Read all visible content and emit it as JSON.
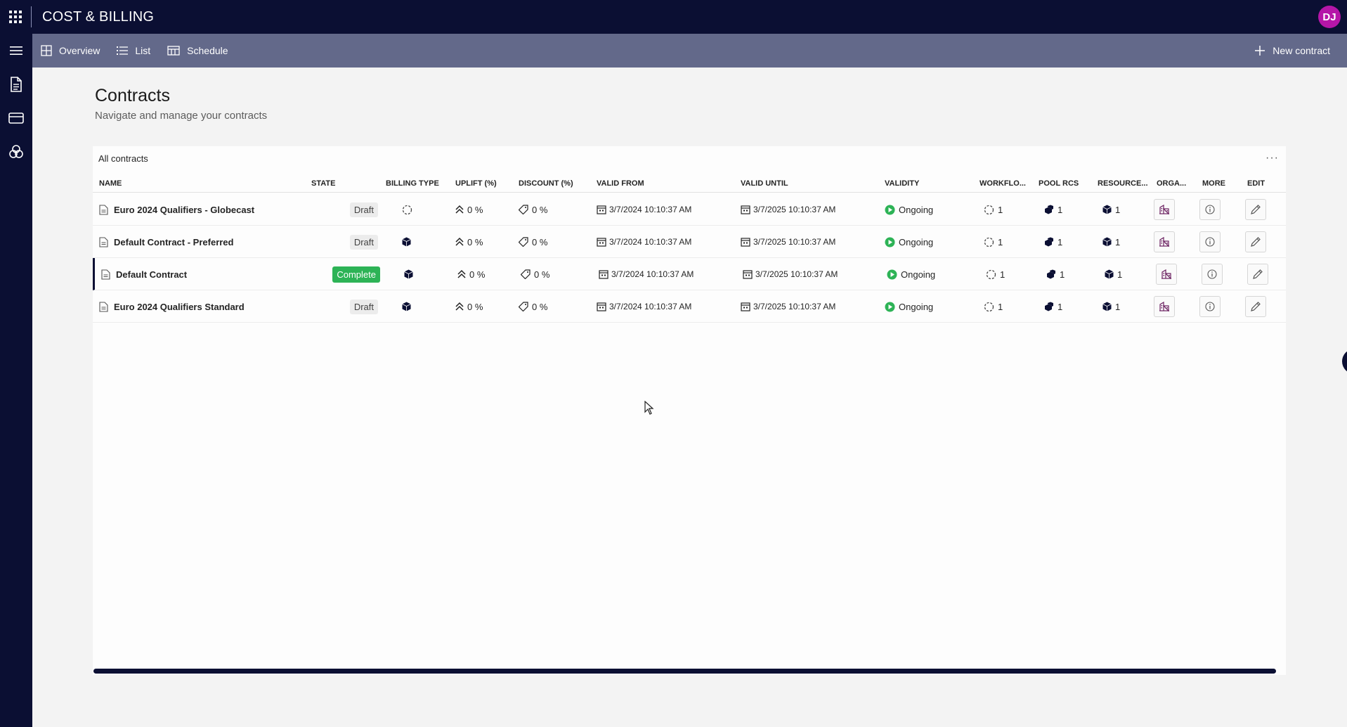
{
  "app": {
    "title": "COST & BILLING",
    "avatar_initials": "DJ"
  },
  "toolbar": {
    "overview_label": "Overview",
    "list_label": "List",
    "schedule_label": "Schedule",
    "new_contract_label": "New contract"
  },
  "page": {
    "title": "Contracts",
    "subtitle": "Navigate and manage your contracts"
  },
  "table": {
    "title": "All contracts",
    "more_label": "···",
    "columns": {
      "name": "NAME",
      "state": "STATE",
      "billing_type": "BILLING TYPE",
      "uplift": "UPLIFT (%)",
      "discount": "DISCOUNT (%)",
      "valid_from": "VALID FROM",
      "valid_until": "VALID UNTIL",
      "validity": "VALIDITY",
      "workflow": "WORKFLO...",
      "pool_rcs": "POOL RCS",
      "resource": "RESOURCE...",
      "orga": "ORGA...",
      "more": "MORE",
      "edit": "EDIT"
    },
    "rows": [
      {
        "name": "Euro 2024 Qualifiers - Globecast",
        "state": "Draft",
        "billing_icon": "spinner-icon",
        "uplift": "0 %",
        "discount": "0 %",
        "valid_from": "3/7/2024 10:10:37 AM",
        "valid_until": "3/7/2025 10:10:37 AM",
        "validity": "Ongoing",
        "workflow": "1",
        "pool_rcs": "1",
        "resource": "1"
      },
      {
        "name": "Default Contract - Preferred",
        "state": "Draft",
        "billing_icon": "cube-icon",
        "uplift": "0 %",
        "discount": "0 %",
        "valid_from": "3/7/2024 10:10:37 AM",
        "valid_until": "3/7/2025 10:10:37 AM",
        "validity": "Ongoing",
        "workflow": "1",
        "pool_rcs": "1",
        "resource": "1"
      },
      {
        "name": "Default Contract",
        "state": "Complete",
        "billing_icon": "cube-icon",
        "uplift": "0 %",
        "discount": "0 %",
        "valid_from": "3/7/2024 10:10:37 AM",
        "valid_until": "3/7/2025 10:10:37 AM",
        "validity": "Ongoing",
        "workflow": "1",
        "pool_rcs": "1",
        "resource": "1"
      },
      {
        "name": "Euro 2024 Qualifiers Standard",
        "state": "Draft",
        "billing_icon": "cube-icon",
        "uplift": "0 %",
        "discount": "0 %",
        "valid_from": "3/7/2024 10:10:37 AM",
        "valid_until": "3/7/2025 10:10:37 AM",
        "validity": "Ongoing",
        "workflow": "1",
        "pool_rcs": "1",
        "resource": "1"
      }
    ]
  },
  "colors": {
    "topbar": "#0b0f33",
    "command_bar": "#63698a",
    "complete_badge": "#2db356",
    "ongoing_status": "#2db356",
    "avatar": "#b516a8"
  }
}
